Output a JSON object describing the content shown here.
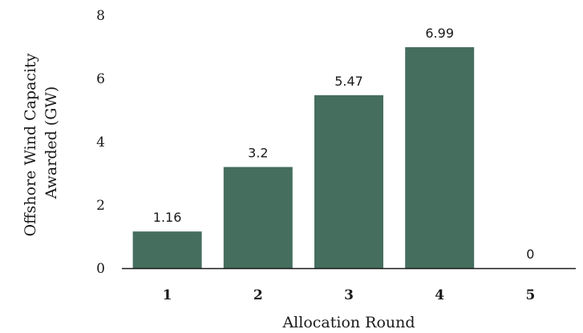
{
  "chart_data": {
    "type": "bar",
    "categories": [
      "1",
      "2",
      "3",
      "4",
      "5"
    ],
    "values": [
      1.16,
      3.2,
      5.47,
      6.99,
      0
    ],
    "data_labels": [
      "1.16",
      "3.2",
      "5.47",
      "6.99",
      "0"
    ],
    "title": "",
    "xlabel": "Allocation Round",
    "ylabel_lines": [
      "Offshore Wind Capacity",
      "Awarded (GW)"
    ],
    "ylim": [
      0,
      8
    ],
    "yticks": [
      0,
      2,
      4,
      6,
      8
    ],
    "grid": false,
    "legend": "none",
    "bar_color": "#456e5e",
    "axis_color": "#1a1a1a"
  }
}
